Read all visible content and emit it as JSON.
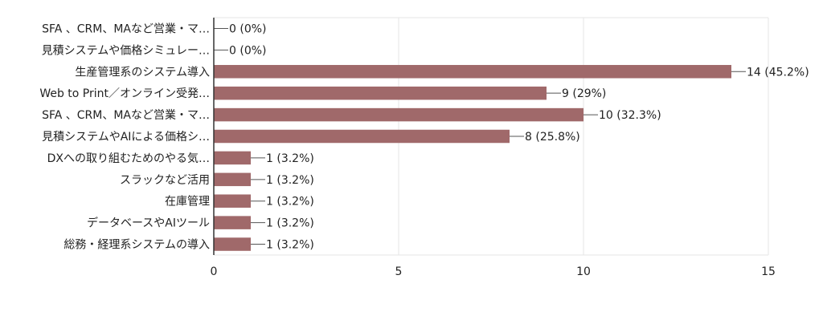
{
  "chart_data": {
    "type": "bar",
    "orientation": "horizontal",
    "categories": [
      "SFA 、CRM、MAなど営業・マ…",
      "見積システムや価格シミュレー…",
      "生産管理系のシステム導入",
      "Web to Print／オンライン受発…",
      "SFA 、CRM、MAなど営業・マ…",
      "見積システムやAIによる価格シ…",
      "DXへの取り組むためのやる気…",
      "スラックなど活用",
      "在庫管理",
      "データベースやAIツール",
      "総務・経理系システムの導入"
    ],
    "values": [
      0,
      0,
      14,
      9,
      10,
      8,
      1,
      1,
      1,
      1,
      1
    ],
    "data_labels": [
      "0 (0%)",
      "0 (0%)",
      "14 (45.2%)",
      "9 (29%)",
      "10 (32.3%)",
      "8 (25.8%)",
      "1 (3.2%)",
      "1 (3.2%)",
      "1 (3.2%)",
      "1 (3.2%)",
      "1 (3.2%)"
    ],
    "xlim": [
      0,
      15
    ],
    "x_ticks": [
      0,
      5,
      10,
      15
    ],
    "grid": true,
    "bar_color": "#a0696a",
    "axis_color": "#333333",
    "grid_color": "#e6e6e6",
    "text_color": "#222222"
  }
}
